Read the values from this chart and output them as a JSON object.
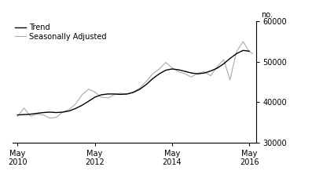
{
  "title": "",
  "ylabel": "no.",
  "ylim": [
    30000,
    60000
  ],
  "yticks": [
    30000,
    40000,
    50000,
    60000
  ],
  "ytick_labels": [
    "30000",
    "40000",
    "50000",
    "60000"
  ],
  "legend_entries": [
    "Trend",
    "Seasonally Adjusted"
  ],
  "trend_color": "#000000",
  "seasonal_color": "#aaaaaa",
  "background_color": "#ffffff",
  "trend_linewidth": 1.0,
  "seasonal_linewidth": 0.8,
  "xtick_labels": [
    "May\n2010",
    "May\n2012",
    "May\n2014",
    "May\n2016"
  ],
  "xtick_positions": [
    2010.33,
    2012.33,
    2014.33,
    2016.33
  ],
  "xlim": [
    2010.2,
    2016.5
  ],
  "trend_data": [
    [
      2010.33,
      36800
    ],
    [
      2010.5,
      36900
    ],
    [
      2010.67,
      37000
    ],
    [
      2010.83,
      37200
    ],
    [
      2011.0,
      37400
    ],
    [
      2011.17,
      37500
    ],
    [
      2011.33,
      37400
    ],
    [
      2011.5,
      37500
    ],
    [
      2011.67,
      37800
    ],
    [
      2011.83,
      38400
    ],
    [
      2012.0,
      39200
    ],
    [
      2012.17,
      40200
    ],
    [
      2012.33,
      41200
    ],
    [
      2012.5,
      41800
    ],
    [
      2012.67,
      42000
    ],
    [
      2012.83,
      42000
    ],
    [
      2013.0,
      41900
    ],
    [
      2013.17,
      42000
    ],
    [
      2013.33,
      42400
    ],
    [
      2013.5,
      43200
    ],
    [
      2013.67,
      44400
    ],
    [
      2013.83,
      45800
    ],
    [
      2014.0,
      47000
    ],
    [
      2014.17,
      47900
    ],
    [
      2014.33,
      48200
    ],
    [
      2014.5,
      48000
    ],
    [
      2014.67,
      47600
    ],
    [
      2014.83,
      47200
    ],
    [
      2015.0,
      47000
    ],
    [
      2015.17,
      47200
    ],
    [
      2015.33,
      47700
    ],
    [
      2015.5,
      48400
    ],
    [
      2015.67,
      49500
    ],
    [
      2015.83,
      50800
    ],
    [
      2016.0,
      52000
    ],
    [
      2016.17,
      52800
    ],
    [
      2016.33,
      52600
    ]
  ],
  "seasonal_data": [
    [
      2010.33,
      36500
    ],
    [
      2010.5,
      38500
    ],
    [
      2010.67,
      36500
    ],
    [
      2010.83,
      37000
    ],
    [
      2011.0,
      36800
    ],
    [
      2011.17,
      36000
    ],
    [
      2011.33,
      36200
    ],
    [
      2011.5,
      37500
    ],
    [
      2011.67,
      38200
    ],
    [
      2011.83,
      39500
    ],
    [
      2012.0,
      41800
    ],
    [
      2012.17,
      43200
    ],
    [
      2012.33,
      42500
    ],
    [
      2012.5,
      41200
    ],
    [
      2012.67,
      41000
    ],
    [
      2012.83,
      41800
    ],
    [
      2013.0,
      42200
    ],
    [
      2013.17,
      42000
    ],
    [
      2013.33,
      42500
    ],
    [
      2013.5,
      43500
    ],
    [
      2013.67,
      45200
    ],
    [
      2013.83,
      47000
    ],
    [
      2014.0,
      48200
    ],
    [
      2014.17,
      49800
    ],
    [
      2014.33,
      48500
    ],
    [
      2014.5,
      47500
    ],
    [
      2014.67,
      47000
    ],
    [
      2014.83,
      46200
    ],
    [
      2015.0,
      47200
    ],
    [
      2015.17,
      47500
    ],
    [
      2015.33,
      46500
    ],
    [
      2015.5,
      48800
    ],
    [
      2015.67,
      50500
    ],
    [
      2015.83,
      45500
    ],
    [
      2016.0,
      52500
    ],
    [
      2016.17,
      55000
    ],
    [
      2016.33,
      52500
    ],
    [
      2016.42,
      52000
    ]
  ]
}
